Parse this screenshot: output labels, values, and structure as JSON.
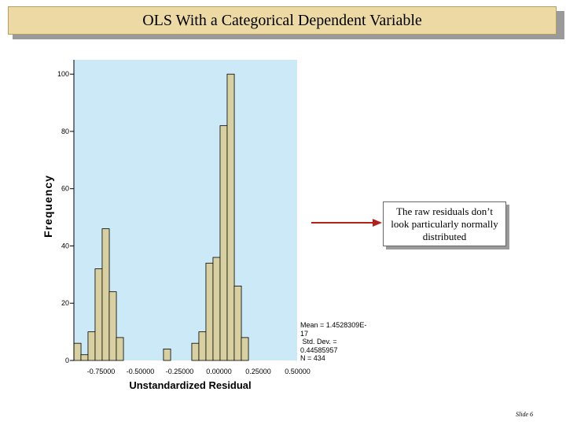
{
  "slide": {
    "title": "OLS With a Categorical Dependent Variable",
    "callout": "The raw residuals don’t look particularly normally distributed",
    "slide_number": "Slide 6"
  },
  "stats": {
    "mean_line1": "Mean = 1.4528309E-",
    "mean_line2": "17",
    "std_line1": " Std. Dev. =",
    "std_line2": "0.44585957",
    "n": "N = 434"
  },
  "chart_data": {
    "type": "bar",
    "title": "",
    "xlabel": "Unstandardized Residual",
    "ylabel": "Frequency",
    "ylim": [
      0,
      105
    ],
    "yticks": [
      0,
      20,
      40,
      60,
      80,
      100
    ],
    "xticks": [
      -0.75,
      -0.5,
      -0.25,
      0.0,
      0.25,
      0.5
    ],
    "xtick_labels": [
      "-0.75000",
      "-0.50000",
      "-0.25000",
      "0.00000",
      "0.25000",
      "0.50000"
    ],
    "bin_width": 0.0455,
    "bins": [
      {
        "x": -0.9,
        "value": 6
      },
      {
        "x": -0.855,
        "value": 2
      },
      {
        "x": -0.81,
        "value": 10
      },
      {
        "x": -0.765,
        "value": 32
      },
      {
        "x": -0.72,
        "value": 46
      },
      {
        "x": -0.675,
        "value": 24
      },
      {
        "x": -0.63,
        "value": 8
      },
      {
        "x": -0.33,
        "value": 4
      },
      {
        "x": -0.15,
        "value": 6
      },
      {
        "x": -0.105,
        "value": 10
      },
      {
        "x": -0.06,
        "value": 34
      },
      {
        "x": -0.015,
        "value": 36
      },
      {
        "x": 0.03,
        "value": 82
      },
      {
        "x": 0.075,
        "value": 100
      },
      {
        "x": 0.12,
        "value": 26
      },
      {
        "x": 0.165,
        "value": 8
      }
    ],
    "bar_color": "#d8d0a0",
    "plot_background": "#cce9f8",
    "grid": false
  }
}
